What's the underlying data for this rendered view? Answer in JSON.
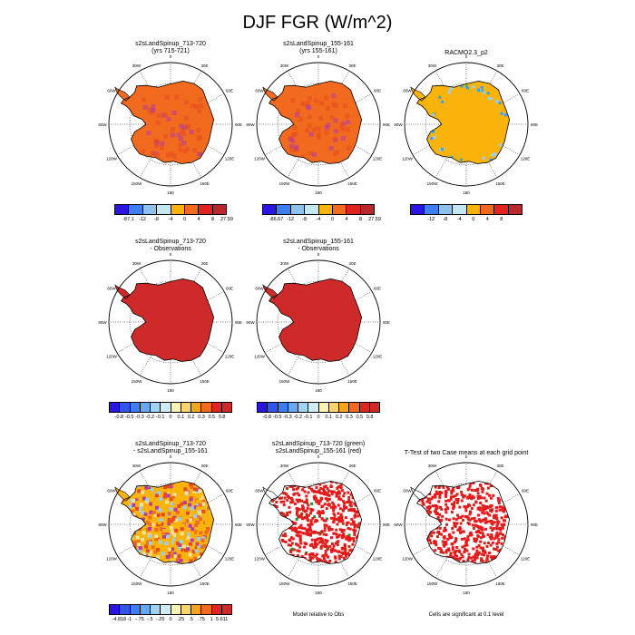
{
  "title": "DJF FGR (W/m^2)",
  "colors": {
    "fill_orange": "#f26a1e",
    "fill_redorange": "#e84a1f",
    "fill_gold": "#f9b30a",
    "fill_red": "#cf2a2a",
    "fill_purple": "#b33ba6",
    "fill_blue": "#3aa0e3",
    "fill_lightblue": "#9ecfe8",
    "fill_pale": "#f4e3a0",
    "fill_green": "#2f8a2f",
    "coast": "#000000"
  },
  "panels": [
    {
      "title_1": "s2sLandSpinup_713-720",
      "title_2": "(yrs 715-721)",
      "fill": "orange",
      "legend": 0
    },
    {
      "title_1": "s2sLandSpinup_155-161",
      "title_2": "(yrs 155-161)",
      "fill": "orange",
      "legend": 1
    },
    {
      "title_1": "RACMO2.3_p2",
      "title_2": "",
      "fill": "gold",
      "legend": 2
    },
    {
      "title_1": "s2sLandSpinup_713-720",
      "title_2": "- Observations",
      "fill": "red",
      "legend": 3
    },
    {
      "title_1": "s2sLandSpinup_155-161",
      "title_2": "- Observations",
      "fill": "red",
      "legend": 4
    },
    {
      "title_1": "",
      "title_2": "",
      "fill": "none",
      "legend": -1
    },
    {
      "title_1": "s2sLandSpinup_713-720",
      "title_2": "- s2sLandSpinup_155-161",
      "fill": "mixed",
      "legend": 5
    },
    {
      "title_1": "s2sLandSpinup_713-720 (green)",
      "title_2": "s2sLandSpinup_155-161 (red)",
      "fill": "speckle",
      "legend": -1
    },
    {
      "title_1": "T-Test of two Case means at each grid point",
      "title_2": "",
      "fill": "speckle",
      "legend": -1
    }
  ],
  "legends": [
    {
      "colors": [
        "#2a16e0",
        "#3f7df2",
        "#8fc1ef",
        "#c2e8f2",
        "#f9b30a",
        "#f26a1e",
        "#e0241f",
        "#b8282e"
      ],
      "labels": [
        "-87.1",
        "-12",
        "-8",
        "-4",
        "0",
        "4",
        "8",
        "27.59"
      ]
    },
    {
      "colors": [
        "#2a16e0",
        "#3f7df2",
        "#8fc1ef",
        "#c2e8f2",
        "#f9b30a",
        "#f26a1e",
        "#e0241f",
        "#b8282e"
      ],
      "labels": [
        "-86.67",
        "-12",
        "-8",
        "-4",
        "0",
        "4",
        "8",
        "27.59"
      ]
    },
    {
      "colors": [
        "#2a16e0",
        "#3f7df2",
        "#8fc1ef",
        "#c2e8f2",
        "#f9b30a",
        "#f26a1e",
        "#e0241f",
        "#b8282e"
      ],
      "labels": [
        "-12",
        "-8",
        "-4",
        "0",
        "4",
        "8"
      ]
    },
    {
      "colors": [
        "#2a16e0",
        "#3153ee",
        "#3f7df2",
        "#69a8f0",
        "#9fd3f0",
        "#cfecf4",
        "#fbf3b4",
        "#fbd56a",
        "#f9a41c",
        "#f26a1e",
        "#e0241f",
        "#cf2a2a"
      ],
      "labels": [
        "-0.8",
        "-0.5",
        "-0.3",
        "-0.2",
        "-0.1",
        "0",
        "0.1",
        "0.2",
        "0.3",
        "0.5",
        "0.8"
      ]
    },
    {
      "colors": [
        "#2a16e0",
        "#3153ee",
        "#3f7df2",
        "#69a8f0",
        "#9fd3f0",
        "#cfecf4",
        "#fbf3b4",
        "#fbd56a",
        "#f9a41c",
        "#f26a1e",
        "#e0241f",
        "#cf2a2a"
      ],
      "labels": [
        "-0.8",
        "-0.5",
        "-0.3",
        "-0.2",
        "-0.1",
        "0",
        "0.1",
        "0.2",
        "0.3",
        "0.5",
        "0.8"
      ]
    },
    {
      "colors": [
        "#2a16e0",
        "#3153ee",
        "#3f7df2",
        "#69a8f0",
        "#9fd3f0",
        "#cfecf4",
        "#fbf3b4",
        "#fbd56a",
        "#f9a41c",
        "#f26a1e",
        "#e0241f",
        "#cf2a2a"
      ],
      "labels": [
        "-4.818",
        "-1",
        "-.75",
        "-.5",
        "-.25",
        "0",
        ".25",
        ".5",
        ".75",
        "1",
        "5.611"
      ]
    }
  ],
  "notes": {
    "model_relative": "Model relative to Obs",
    "cells_significant": "Cells are significant at 0.1 level"
  },
  "longitude_labels": [
    "0",
    "30E",
    "60E",
    "90E",
    "120E",
    "150E",
    "180",
    "150W",
    "120W",
    "90W",
    "60W",
    "30W"
  ]
}
